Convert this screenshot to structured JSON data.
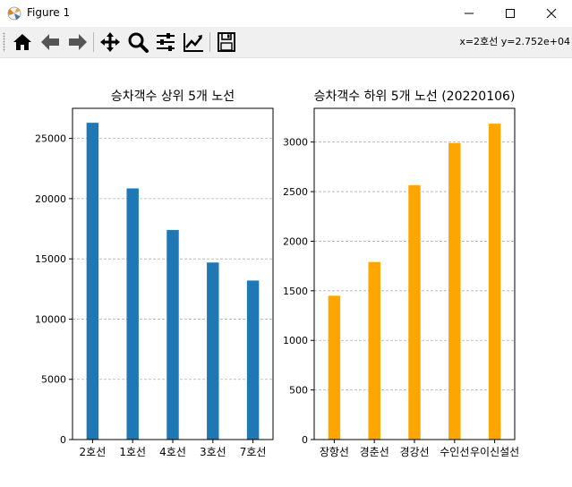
{
  "window": {
    "title": "Figure 1"
  },
  "toolbar": {
    "buttons": [
      {
        "name": "home-icon"
      },
      {
        "name": "back-icon"
      },
      {
        "name": "forward-icon"
      },
      {
        "name": "pan-icon"
      },
      {
        "name": "zoom-icon"
      },
      {
        "name": "configure-subplots-icon"
      },
      {
        "name": "edit-axis-icon"
      },
      {
        "name": "save-icon"
      }
    ],
    "coords_readout": "x=2호선 y=2.752e+04"
  },
  "chart_data": [
    {
      "type": "bar",
      "title": "승차객수 상위 5개 노선",
      "categories": [
        "2호선",
        "1호선",
        "4호선",
        "3호선",
        "7호선"
      ],
      "values": [
        26300,
        20850,
        17400,
        14700,
        13200
      ],
      "ylim": [
        0,
        27500
      ],
      "yticks": [
        0,
        5000,
        10000,
        15000,
        20000,
        25000
      ],
      "color": "#1f77b4",
      "grid": "y-dashed"
    },
    {
      "type": "bar",
      "title": "승차객수 하위 5개 노선 (20220106)",
      "categories": [
        "장항선",
        "경춘선",
        "경강선",
        "수인선",
        "우이신설선"
      ],
      "values": [
        1450,
        1790,
        2565,
        2990,
        3185
      ],
      "ylim": [
        0,
        3340
      ],
      "yticks": [
        0,
        500,
        1000,
        1500,
        2000,
        2500,
        3000
      ],
      "color": "#ffa500",
      "grid": "y-dashed"
    }
  ]
}
